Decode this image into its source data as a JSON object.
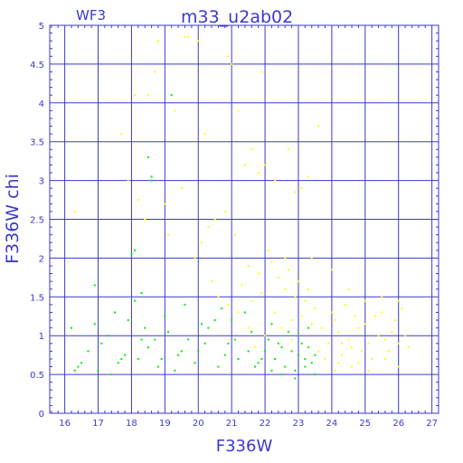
{
  "chart_data": {
    "type": "scatter",
    "title": "m33_u2ab02",
    "subtitle": "WF3",
    "xlabel": "F336W",
    "ylabel": "F336W chi",
    "xlim": [
      15.55,
      27.2
    ],
    "ylim": [
      0,
      5
    ],
    "xticks": [
      16,
      17,
      18,
      19,
      20,
      21,
      22,
      23,
      24,
      25,
      26,
      27
    ],
    "yticks": [
      0,
      0.5,
      1,
      1.5,
      2,
      2.5,
      3,
      3.5,
      4,
      4.5,
      5
    ],
    "ytick_labels": [
      "0",
      "0.5",
      "1",
      "1.5",
      "2",
      "2.5",
      "3",
      "3.5",
      "4",
      "4.5",
      "5"
    ],
    "grid": true,
    "series": [
      {
        "color": "#ffff00",
        "points": [
          [
            24.2,
            1.05
          ],
          [
            24.5,
            0.95
          ],
          [
            24.8,
            1.1
          ],
          [
            25.1,
            0.9
          ],
          [
            25.4,
            1.0
          ],
          [
            24.1,
            1.2
          ],
          [
            24.6,
            0.85
          ],
          [
            25.0,
            1.15
          ],
          [
            25.6,
            0.95
          ],
          [
            23.9,
            0.9
          ],
          [
            24.3,
            0.75
          ],
          [
            24.9,
            0.8
          ],
          [
            25.3,
            1.25
          ],
          [
            25.8,
            1.05
          ],
          [
            26.0,
            0.9
          ],
          [
            23.7,
            1.1
          ],
          [
            24.0,
            1.3
          ],
          [
            24.4,
            1.4
          ],
          [
            25.2,
            0.7
          ],
          [
            25.5,
            1.3
          ],
          [
            25.9,
            1.2
          ],
          [
            26.2,
            1.0
          ],
          [
            23.8,
            0.7
          ],
          [
            24.7,
            1.25
          ],
          [
            25.7,
            0.8
          ],
          [
            24.2,
            0.65
          ],
          [
            23.5,
            1.35
          ],
          [
            23.2,
            1.45
          ],
          [
            22.9,
            1.5
          ],
          [
            22.6,
            1.6
          ],
          [
            22.3,
            1.3
          ],
          [
            22.8,
            1.2
          ],
          [
            23.1,
            1.25
          ],
          [
            22.5,
            1.1
          ],
          [
            23.4,
            1.15
          ],
          [
            24.1,
            0.55
          ],
          [
            24.6,
            0.6
          ],
          [
            25.1,
            0.55
          ],
          [
            26.1,
            1.35
          ],
          [
            26.3,
            0.85
          ],
          [
            22.4,
            1.75
          ],
          [
            22.7,
            1.85
          ],
          [
            22.2,
            1.95
          ],
          [
            23.0,
            1.7
          ],
          [
            23.3,
            1.6
          ],
          [
            22.6,
            2.0
          ],
          [
            21.9,
            1.55
          ],
          [
            21.6,
            1.45
          ],
          [
            21.3,
            1.65
          ],
          [
            22.1,
            2.1
          ],
          [
            21.8,
            1.8
          ],
          [
            20.6,
            1.5
          ],
          [
            20.9,
            1.4
          ],
          [
            21.2,
            1.3
          ],
          [
            20.4,
            1.7
          ],
          [
            21.5,
            1.9
          ],
          [
            20.1,
            2.2
          ],
          [
            20.5,
            2.5
          ],
          [
            20.8,
            2.6
          ],
          [
            20.3,
            2.4
          ],
          [
            19.5,
            2.9
          ],
          [
            19.1,
            2.3
          ],
          [
            18.4,
            2.5
          ],
          [
            19.9,
            2.0
          ],
          [
            21.1,
            2.3
          ],
          [
            21.6,
            3.4
          ],
          [
            21.2,
            3.9
          ],
          [
            21.0,
            4.5
          ],
          [
            20.9,
            4.6
          ],
          [
            19.6,
            4.85
          ],
          [
            19.7,
            4.85
          ],
          [
            18.8,
            4.8
          ],
          [
            20.0,
            4.8
          ],
          [
            21.9,
            4.4
          ],
          [
            23.6,
            3.7
          ],
          [
            23.3,
            3.05
          ],
          [
            22.7,
            3.4
          ],
          [
            22.3,
            3.0
          ],
          [
            22.0,
            3.2
          ],
          [
            21.8,
            3.1
          ],
          [
            21.4,
            3.2
          ],
          [
            18.5,
            4.1
          ],
          [
            18.7,
            4.4
          ],
          [
            18.1,
            4.1
          ],
          [
            20.2,
            3.6
          ],
          [
            19.3,
            3.9
          ],
          [
            17.7,
            3.6
          ],
          [
            17.9,
            3.0
          ],
          [
            18.2,
            2.75
          ],
          [
            19.0,
            2.7
          ],
          [
            22.9,
            2.85
          ],
          [
            23.1,
            2.9
          ],
          [
            16.1,
            1.95
          ],
          [
            16.3,
            2.6
          ],
          [
            23.4,
            2.0
          ],
          [
            24.0,
            1.85
          ],
          [
            24.5,
            1.6
          ],
          [
            25.0,
            1.45
          ],
          [
            25.5,
            1.5
          ],
          [
            26.0,
            1.45
          ],
          [
            22.0,
            1.0
          ],
          [
            21.7,
            0.85
          ],
          [
            22.3,
            0.7
          ],
          [
            21.5,
            1.1
          ],
          [
            22.8,
            0.95
          ],
          [
            23.6,
            0.8
          ],
          [
            24.8,
            0.65
          ],
          [
            25.6,
            0.7
          ],
          [
            26.0,
            0.6
          ],
          [
            24.3,
            0.9
          ]
        ]
      },
      {
        "color": "#00ee00",
        "points": [
          [
            23.0,
            0.75
          ],
          [
            23.2,
            0.7
          ],
          [
            22.8,
            0.8
          ],
          [
            23.4,
            0.65
          ],
          [
            22.6,
            0.6
          ],
          [
            23.1,
            0.9
          ],
          [
            22.9,
            0.55
          ],
          [
            23.3,
            0.85
          ],
          [
            22.5,
            0.85
          ],
          [
            23.5,
            0.75
          ],
          [
            22.3,
            0.7
          ],
          [
            22.1,
            0.95
          ],
          [
            21.8,
            0.65
          ],
          [
            21.5,
            0.8
          ],
          [
            21.2,
            0.7
          ],
          [
            20.9,
            0.9
          ],
          [
            20.6,
            0.6
          ],
          [
            20.3,
            1.1
          ],
          [
            20.0,
            0.8
          ],
          [
            19.7,
            0.95
          ],
          [
            19.4,
            0.75
          ],
          [
            19.1,
            1.05
          ],
          [
            18.8,
            0.6
          ],
          [
            18.5,
            0.85
          ],
          [
            18.2,
            0.7
          ],
          [
            17.9,
            1.2
          ],
          [
            17.6,
            0.65
          ],
          [
            17.3,
            1.0
          ],
          [
            17.0,
            0.55
          ],
          [
            16.7,
            0.8
          ],
          [
            16.4,
            0.6
          ],
          [
            16.5,
            0.65
          ],
          [
            16.2,
            1.1
          ],
          [
            16.9,
            1.15
          ],
          [
            17.1,
            0.9
          ],
          [
            17.5,
            1.3
          ],
          [
            17.8,
            0.75
          ],
          [
            18.1,
            1.45
          ],
          [
            18.4,
            1.1
          ],
          [
            18.7,
            0.95
          ],
          [
            19.0,
            1.25
          ],
          [
            19.3,
            0.55
          ],
          [
            19.6,
            1.4
          ],
          [
            19.9,
            0.65
          ],
          [
            20.2,
            0.9
          ],
          [
            20.5,
            1.2
          ],
          [
            20.8,
            0.75
          ],
          [
            21.1,
            0.95
          ],
          [
            21.4,
            1.3
          ],
          [
            21.7,
            0.6
          ],
          [
            22.0,
            0.8
          ],
          [
            22.2,
            1.15
          ],
          [
            22.4,
            0.9
          ],
          [
            22.7,
            1.05
          ],
          [
            23.0,
            1.0
          ],
          [
            23.2,
            0.6
          ],
          [
            23.3,
            1.1
          ],
          [
            23.5,
            0.5
          ],
          [
            22.9,
            0.45
          ],
          [
            22.5,
            0.5
          ],
          [
            18.6,
            3.0
          ],
          [
            18.6,
            3.05
          ],
          [
            19.2,
            4.1
          ],
          [
            18.5,
            3.3
          ],
          [
            18.0,
            2.05
          ],
          [
            18.1,
            2.1
          ],
          [
            16.9,
            1.65
          ],
          [
            18.3,
            1.55
          ],
          [
            17.4,
            0.5
          ],
          [
            16.3,
            0.55
          ],
          [
            21.6,
            1.05
          ],
          [
            21.9,
            0.7
          ],
          [
            22.2,
            0.55
          ],
          [
            20.7,
            1.35
          ],
          [
            20.1,
            1.15
          ],
          [
            19.5,
            0.8
          ],
          [
            18.9,
            0.7
          ],
          [
            18.3,
            0.95
          ],
          [
            17.7,
            0.7
          ],
          [
            21.0,
            1.2
          ]
        ]
      }
    ]
  }
}
